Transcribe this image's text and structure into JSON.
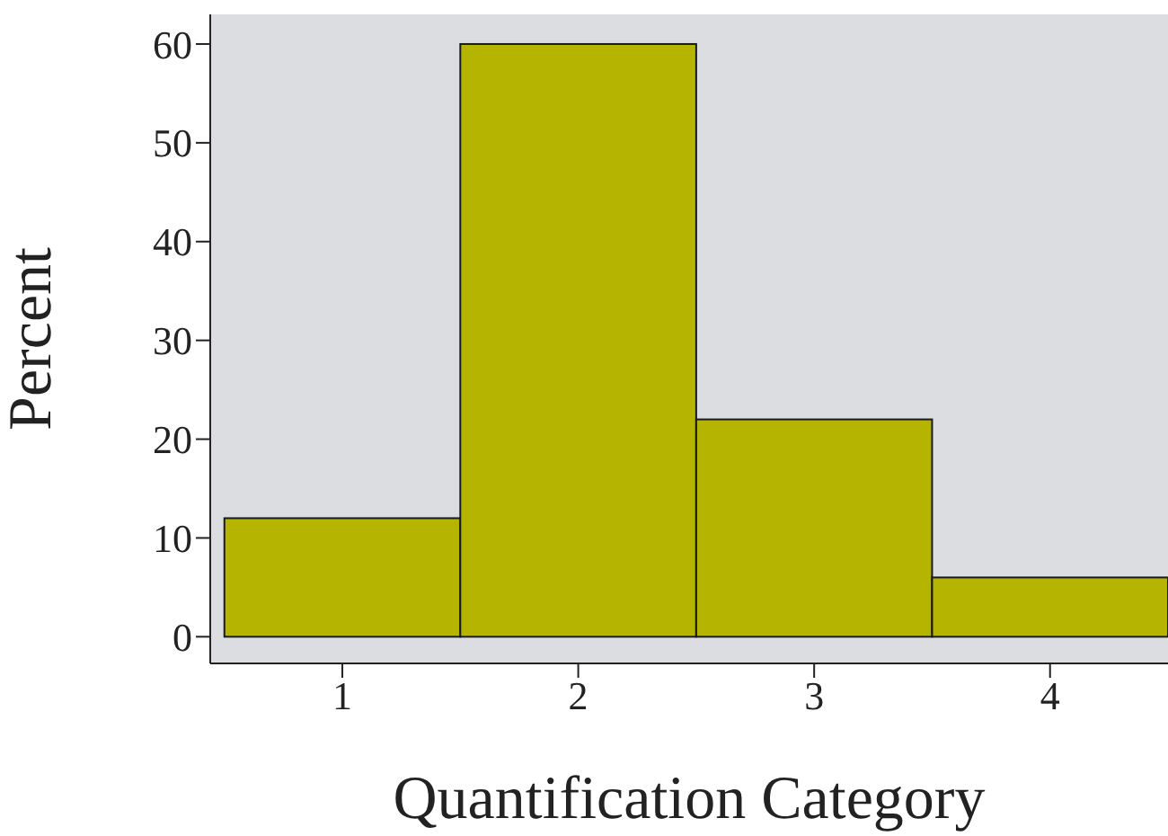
{
  "chart_data": {
    "type": "histogram",
    "xlabel": "Quantification Category",
    "ylabel": "Percent",
    "bins": [
      0.5,
      1.5,
      2.5,
      3.5,
      4.5
    ],
    "values": [
      12,
      60,
      22,
      6
    ],
    "color": "#b5b400",
    "xlim": [
      0.44,
      4.5
    ],
    "xticks": [
      1,
      2,
      3,
      4
    ],
    "ylim": [
      -2.7,
      63
    ],
    "yticks": [
      0,
      10,
      20,
      30,
      40,
      50,
      60
    ]
  }
}
